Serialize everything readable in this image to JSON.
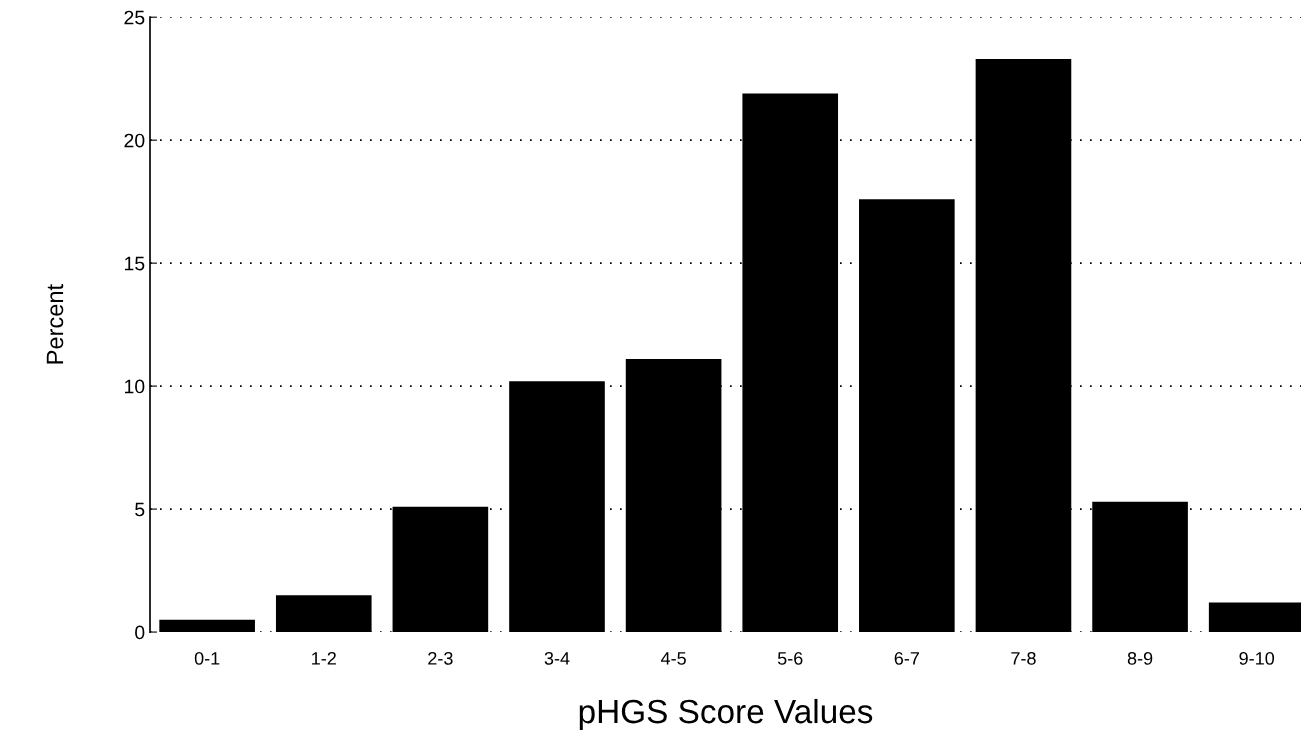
{
  "chart_data": {
    "type": "bar",
    "xlabel": "pHGS Score Values",
    "ylabel": "Percent",
    "categories": [
      "0-1",
      "1-2",
      "2-3",
      "3-4",
      "4-5",
      "5-6",
      "6-7",
      "7-8",
      "8-9",
      "9-10"
    ],
    "values": [
      0.5,
      1.5,
      5.1,
      10.2,
      11.1,
      21.9,
      17.6,
      23.3,
      5.3,
      1.2
    ],
    "color": "#000000",
    "ylim": [
      0,
      25
    ],
    "yticks": [
      0,
      5,
      10,
      15,
      20,
      25
    ],
    "grid": "y"
  }
}
